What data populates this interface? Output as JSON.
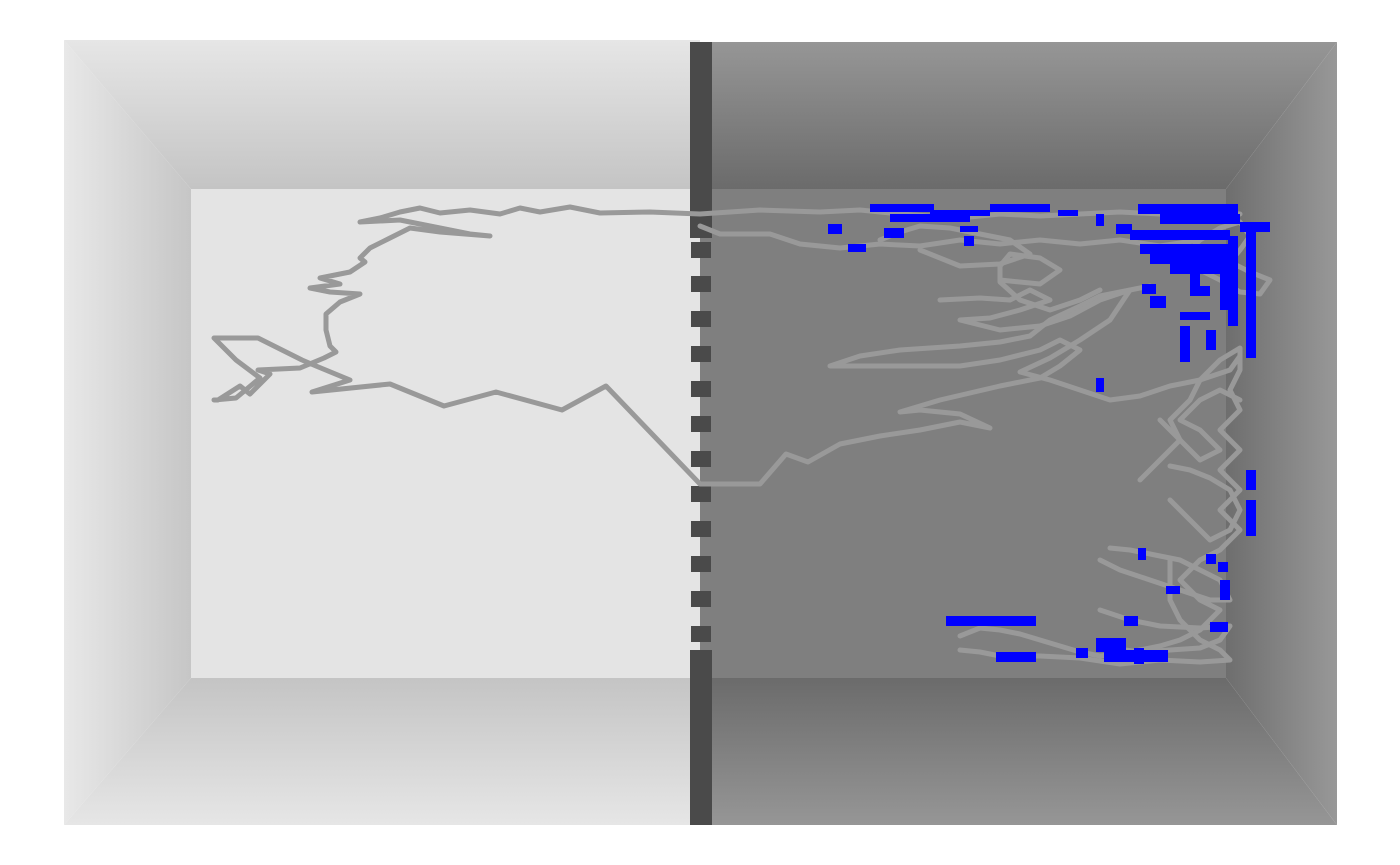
{
  "colors": {
    "background": "#ffffff",
    "light_chamber_floor": "#e4e4e4",
    "light_chamber_wall_outer": "#e6e6e6",
    "light_chamber_wall_inner": "#c7c7c7",
    "dark_chamber_floor": "#7f7f7f",
    "dark_chamber_wall_outer": "#969696",
    "dark_chamber_wall_inner": "#6a6a6a",
    "divider": "#4a4a4a",
    "trajectory": "#999999",
    "freezing_marks": "#0000ff"
  },
  "chambers": [
    {
      "name": "light-chamber"
    },
    {
      "name": "dark-chamber"
    }
  ],
  "trajectory_description_only": "",
  "icons": {
    "divider": "door-divider-icon"
  }
}
